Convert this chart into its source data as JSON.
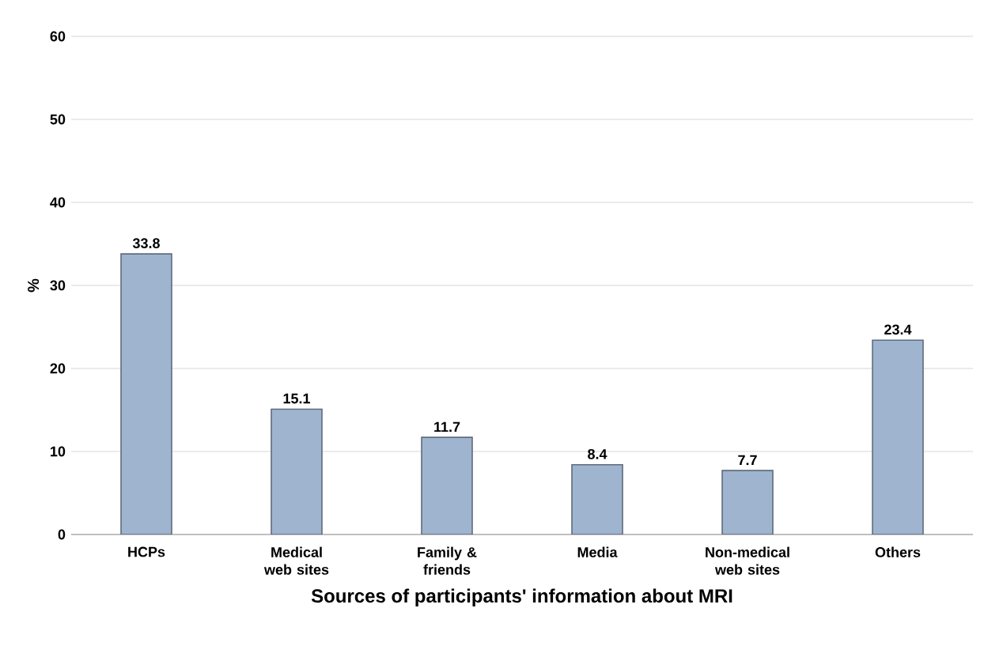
{
  "chart_data": {
    "type": "bar",
    "xlabel": "Sources of participants' information about MRI",
    "ylabel": "%",
    "categories": [
      "HCPs",
      "Medical web sites",
      "Family & friends",
      "Media",
      "Non-medical web sites",
      "Others"
    ],
    "values": [
      33.8,
      15.1,
      11.7,
      8.4,
      7.7,
      23.4
    ],
    "color": "#9eb4cf",
    "ylim": [
      0,
      60
    ],
    "yticks": [
      0,
      10,
      20,
      30,
      40,
      50,
      60
    ],
    "grid": "y",
    "data_labels": true
  }
}
